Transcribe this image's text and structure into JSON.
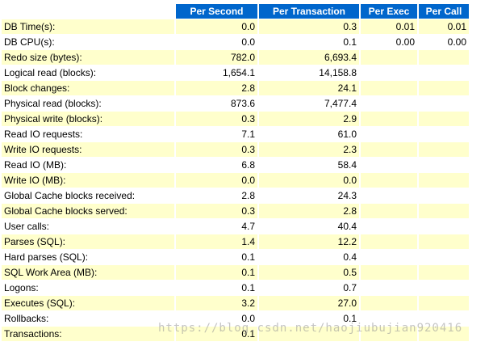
{
  "columns": {
    "per_second": "Per Second",
    "per_transaction": "Per Transaction",
    "per_exec": "Per Exec",
    "per_call": "Per Call"
  },
  "rows": [
    {
      "label": "DB Time(s):",
      "per_second": "0.0",
      "per_transaction": "0.3",
      "per_exec": "0.01",
      "per_call": "0.01"
    },
    {
      "label": "DB CPU(s):",
      "per_second": "0.0",
      "per_transaction": "0.1",
      "per_exec": "0.00",
      "per_call": "0.00"
    },
    {
      "label": "Redo size (bytes):",
      "per_second": "782.0",
      "per_transaction": "6,693.4",
      "per_exec": "",
      "per_call": ""
    },
    {
      "label": "Logical read (blocks):",
      "per_second": "1,654.1",
      "per_transaction": "14,158.8",
      "per_exec": "",
      "per_call": ""
    },
    {
      "label": "Block changes:",
      "per_second": "2.8",
      "per_transaction": "24.1",
      "per_exec": "",
      "per_call": ""
    },
    {
      "label": "Physical read (blocks):",
      "per_second": "873.6",
      "per_transaction": "7,477.4",
      "per_exec": "",
      "per_call": ""
    },
    {
      "label": "Physical write (blocks):",
      "per_second": "0.3",
      "per_transaction": "2.9",
      "per_exec": "",
      "per_call": ""
    },
    {
      "label": "Read IO requests:",
      "per_second": "7.1",
      "per_transaction": "61.0",
      "per_exec": "",
      "per_call": ""
    },
    {
      "label": "Write IO requests:",
      "per_second": "0.3",
      "per_transaction": "2.3",
      "per_exec": "",
      "per_call": ""
    },
    {
      "label": "Read IO (MB):",
      "per_second": "6.8",
      "per_transaction": "58.4",
      "per_exec": "",
      "per_call": ""
    },
    {
      "label": "Write IO (MB):",
      "per_second": "0.0",
      "per_transaction": "0.0",
      "per_exec": "",
      "per_call": ""
    },
    {
      "label": "Global Cache blocks received:",
      "per_second": "2.8",
      "per_transaction": "24.3",
      "per_exec": "",
      "per_call": ""
    },
    {
      "label": "Global Cache blocks served:",
      "per_second": "0.3",
      "per_transaction": "2.8",
      "per_exec": "",
      "per_call": ""
    },
    {
      "label": "User calls:",
      "per_second": "4.7",
      "per_transaction": "40.4",
      "per_exec": "",
      "per_call": ""
    },
    {
      "label": "Parses (SQL):",
      "per_second": "1.4",
      "per_transaction": "12.2",
      "per_exec": "",
      "per_call": ""
    },
    {
      "label": "Hard parses (SQL):",
      "per_second": "0.1",
      "per_transaction": "0.4",
      "per_exec": "",
      "per_call": ""
    },
    {
      "label": "SQL Work Area (MB):",
      "per_second": "0.1",
      "per_transaction": "0.5",
      "per_exec": "",
      "per_call": ""
    },
    {
      "label": "Logons:",
      "per_second": "0.1",
      "per_transaction": "0.7",
      "per_exec": "",
      "per_call": ""
    },
    {
      "label": "Executes (SQL):",
      "per_second": "3.2",
      "per_transaction": "27.0",
      "per_exec": "",
      "per_call": ""
    },
    {
      "label": "Rollbacks:",
      "per_second": "0.0",
      "per_transaction": "0.1",
      "per_exec": "",
      "per_call": ""
    },
    {
      "label": "Transactions:",
      "per_second": "0.1",
      "per_transaction": "",
      "per_exec": "",
      "per_call": ""
    }
  ],
  "watermark": "https://blog.csdn.net/haojiubujian920416",
  "colors": {
    "header_bg": "#0066cc",
    "header_text": "#ffffff",
    "row_alt_bg": "#ffffcc",
    "row_bg": "#ffffff"
  }
}
